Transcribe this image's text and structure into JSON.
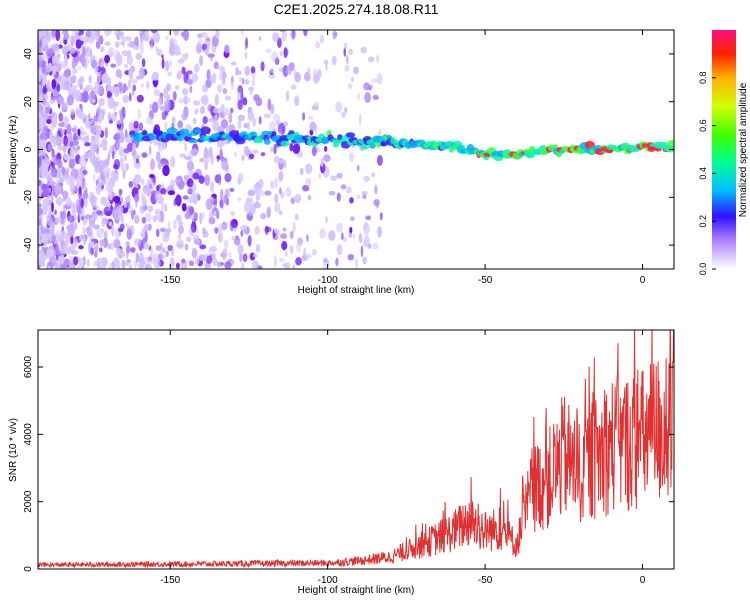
{
  "title": "C2E1.2025.274.18.08.R11",
  "chart_data": [
    {
      "type": "heatmap",
      "xlabel": "Height of straight line (km)",
      "ylabel": "Frequency (Hz)",
      "xlim": [
        -192,
        10
      ],
      "ylim": [
        -50,
        50
      ],
      "xticks": [
        -150,
        -100,
        -50,
        0
      ],
      "yticks": [
        -40,
        -20,
        0,
        20,
        40
      ],
      "colorbar": {
        "label": "Normalized spectral amplitude",
        "range": [
          0,
          1
        ],
        "ticks": [
          0.0,
          0.2,
          0.4,
          0.6,
          0.8
        ]
      },
      "ridge": [
        {
          "x": -160,
          "y": 6
        },
        {
          "x": -140,
          "y": 6
        },
        {
          "x": -120,
          "y": 5
        },
        {
          "x": -100,
          "y": 4
        },
        {
          "x": -80,
          "y": 3
        },
        {
          "x": -60,
          "y": 1
        },
        {
          "x": -50,
          "y": -2
        },
        {
          "x": -40,
          "y": -2
        },
        {
          "x": -25,
          "y": 0
        },
        {
          "x": -10,
          "y": 0
        },
        {
          "x": 0,
          "y": 1
        },
        {
          "x": 10,
          "y": 1
        }
      ]
    },
    {
      "type": "line",
      "xlabel": "Height of straight line (km)",
      "ylabel": "SNR (10 * v/v)",
      "xlim": [
        -192,
        10
      ],
      "ylim": [
        0,
        7100
      ],
      "xticks": [
        -150,
        -100,
        -50,
        0
      ],
      "yticks": [
        0,
        2000,
        4000,
        6000
      ],
      "color": "#e03030",
      "envelope": [
        {
          "x": -192,
          "y": 150
        },
        {
          "x": -150,
          "y": 180
        },
        {
          "x": -100,
          "y": 220
        },
        {
          "x": -90,
          "y": 300
        },
        {
          "x": -80,
          "y": 450
        },
        {
          "x": -70,
          "y": 900
        },
        {
          "x": -60,
          "y": 1400
        },
        {
          "x": -55,
          "y": 1800
        },
        {
          "x": -50,
          "y": 1400
        },
        {
          "x": -45,
          "y": 1500
        },
        {
          "x": -40,
          "y": 900
        },
        {
          "x": -35,
          "y": 3000
        },
        {
          "x": -30,
          "y": 3300
        },
        {
          "x": -25,
          "y": 4200
        },
        {
          "x": -20,
          "y": 3600
        },
        {
          "x": -10,
          "y": 4600
        },
        {
          "x": 0,
          "y": 4800
        },
        {
          "x": 5,
          "y": 5200
        },
        {
          "x": 10,
          "y": 5000
        }
      ]
    }
  ]
}
